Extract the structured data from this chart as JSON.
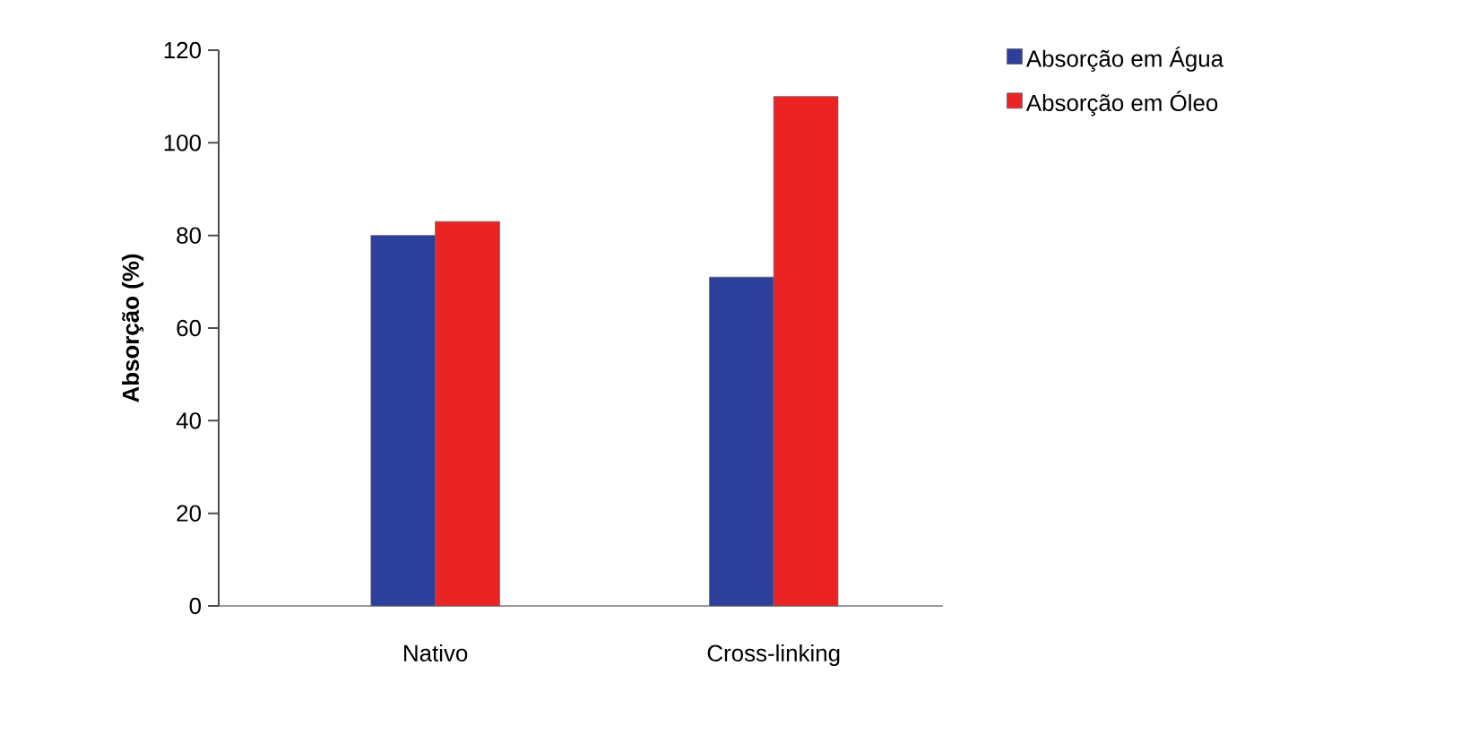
{
  "chart_data": {
    "type": "bar",
    "ylabel": "Absorção (%)",
    "categories": [
      "Nativo",
      "Cross-linking"
    ],
    "series": [
      {
        "name": "Absorção em Água",
        "color": "#2b3f9b",
        "values": [
          80,
          71
        ]
      },
      {
        "name": "Absorção em Óleo",
        "color": "#ec2323",
        "values": [
          83,
          110
        ]
      }
    ],
    "ylim": [
      0,
      120
    ],
    "yticks": [
      0,
      20,
      40,
      60,
      80,
      100,
      120
    ],
    "legend": "top right"
  }
}
